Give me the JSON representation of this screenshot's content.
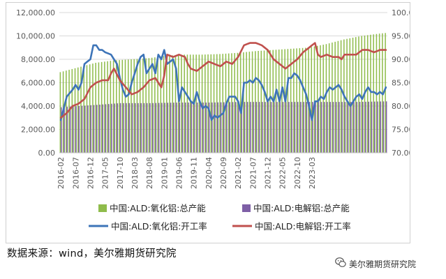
{
  "source_note": "数据来源：wind，美尔雅期货研究院",
  "watermark": "美尔雅期货研究院",
  "chart_data": {
    "type": "bar+line",
    "title": "",
    "left_axis": {
      "ylim": [
        0,
        12000
      ],
      "ticks": [
        "0.00",
        "2,000.00",
        "4,000.00",
        "6,000.00",
        "8,000.00",
        "10,000.00",
        "12,000.00"
      ]
    },
    "right_axis": {
      "ylim": [
        70,
        100
      ],
      "ticks": [
        "70.00",
        "75.00",
        "80.00",
        "85.00",
        "90.00",
        "95.00",
        "100.00"
      ]
    },
    "x_ticks": [
      "2016-02",
      "2016-07",
      "2016-12",
      "2017-05",
      "2017-10",
      "2018-03",
      "2018-08",
      "2019-01",
      "2019-06",
      "2019-11",
      "2020-04",
      "2020-09",
      "2021-02",
      "2021-07",
      "2021-12",
      "2022-05",
      "2022-10",
      "2023-03"
    ],
    "start_month": "2016-02",
    "grid": true,
    "legend_position": "bottom",
    "series": [
      {
        "name": "中国:ALD:氧化铝:总产能",
        "axis": "left",
        "kind": "bar",
        "color": "#8fbc4b",
        "anchors": [
          [
            0,
            6900
          ],
          [
            6,
            7300
          ],
          [
            12,
            7700
          ],
          [
            18,
            7900
          ],
          [
            24,
            8000
          ],
          [
            30,
            8100
          ],
          [
            36,
            8300
          ],
          [
            42,
            8400
          ],
          [
            48,
            8400
          ],
          [
            54,
            8450
          ],
          [
            60,
            8550
          ],
          [
            66,
            8700
          ],
          [
            72,
            8800
          ],
          [
            78,
            8900
          ],
          [
            84,
            9000
          ],
          [
            90,
            9300
          ],
          [
            96,
            9700
          ],
          [
            102,
            10000
          ],
          [
            108,
            10200
          ],
          [
            110,
            10250
          ]
        ]
      },
      {
        "name": "中国:ALD:电解铝:总产能",
        "axis": "left",
        "kind": "bar",
        "color": "#7e5fa6",
        "anchors": [
          [
            0,
            3900
          ],
          [
            12,
            4100
          ],
          [
            20,
            4250
          ],
          [
            30,
            4250
          ],
          [
            40,
            4300
          ],
          [
            50,
            4300
          ],
          [
            60,
            4350
          ],
          [
            70,
            4350
          ],
          [
            80,
            4350
          ],
          [
            90,
            4350
          ],
          [
            100,
            4350
          ],
          [
            110,
            4400
          ]
        ]
      },
      {
        "name": "中国:ALD:氧化铝:开工率",
        "axis": "right",
        "kind": "line",
        "color": "#3d74b8",
        "anchors": [
          [
            0,
            77
          ],
          [
            2,
            82
          ],
          [
            4,
            83.5
          ],
          [
            5,
            84.5
          ],
          [
            6,
            83.5
          ],
          [
            7,
            85
          ],
          [
            8,
            89
          ],
          [
            10,
            90
          ],
          [
            11,
            93
          ],
          [
            12,
            93
          ],
          [
            13,
            92
          ],
          [
            14,
            92
          ],
          [
            15,
            91.5
          ],
          [
            17,
            91
          ],
          [
            18,
            90
          ],
          [
            19,
            89
          ],
          [
            20,
            86
          ],
          [
            21,
            83.5
          ],
          [
            22,
            82
          ],
          [
            23,
            82.5
          ],
          [
            24,
            85
          ],
          [
            25,
            87
          ],
          [
            26,
            89
          ],
          [
            27,
            90.5
          ],
          [
            28,
            91
          ],
          [
            29,
            87
          ],
          [
            30,
            88
          ],
          [
            31,
            89
          ],
          [
            32,
            87
          ],
          [
            33,
            91
          ],
          [
            34,
            90
          ],
          [
            35,
            92
          ],
          [
            36,
            89
          ],
          [
            37,
            89.5
          ],
          [
            38,
            90
          ],
          [
            39,
            88
          ],
          [
            40,
            81
          ],
          [
            41,
            84
          ],
          [
            42,
            83
          ],
          [
            43,
            82
          ],
          [
            44,
            81
          ],
          [
            45,
            80.5
          ],
          [
            46,
            83
          ],
          [
            47,
            81
          ],
          [
            48,
            79.5
          ],
          [
            49,
            80
          ],
          [
            50,
            79.5
          ],
          [
            51,
            77
          ],
          [
            52,
            78
          ],
          [
            53,
            77.5
          ],
          [
            55,
            78.5
          ],
          [
            56,
            80.5
          ],
          [
            57,
            82
          ],
          [
            58,
            82
          ],
          [
            59,
            82
          ],
          [
            60,
            81
          ],
          [
            61,
            78.5
          ],
          [
            62,
            85
          ],
          [
            63,
            85
          ],
          [
            64,
            85.5
          ],
          [
            65,
            85
          ],
          [
            66,
            86
          ],
          [
            67,
            85.5
          ],
          [
            68,
            84.5
          ],
          [
            69,
            83
          ],
          [
            70,
            81
          ],
          [
            71,
            82
          ],
          [
            72,
            81
          ],
          [
            73,
            83.5
          ],
          [
            74,
            81
          ],
          [
            75,
            84
          ],
          [
            76,
            81
          ],
          [
            77,
            86
          ],
          [
            78,
            86
          ],
          [
            79,
            87
          ],
          [
            80,
            86.5
          ],
          [
            81,
            85.5
          ],
          [
            82,
            84
          ],
          [
            83,
            82.5
          ],
          [
            84,
            80
          ],
          [
            85,
            77
          ],
          [
            86,
            81
          ],
          [
            87,
            81
          ],
          [
            88,
            82
          ],
          [
            89,
            81.5
          ],
          [
            90,
            83
          ],
          [
            91,
            84
          ],
          [
            92,
            83.5
          ],
          [
            93,
            84
          ],
          [
            94,
            84.5
          ],
          [
            95,
            83.5
          ],
          [
            96,
            82
          ],
          [
            97,
            81
          ],
          [
            98,
            80
          ],
          [
            99,
            81
          ],
          [
            100,
            82
          ],
          [
            101,
            82.5
          ],
          [
            102,
            81.5
          ],
          [
            103,
            83
          ],
          [
            104,
            84
          ],
          [
            105,
            83
          ],
          [
            106,
            83
          ],
          [
            107,
            82.5
          ],
          [
            108,
            83
          ],
          [
            109,
            82.5
          ],
          [
            110,
            84
          ]
        ]
      },
      {
        "name": "中国:ALD:电解铝:开工率",
        "axis": "right",
        "kind": "line",
        "color": "#c0504d",
        "anchors": [
          [
            0,
            77.5
          ],
          [
            2,
            78.5
          ],
          [
            4,
            80
          ],
          [
            6,
            80.5
          ],
          [
            8,
            81.5
          ],
          [
            10,
            84
          ],
          [
            12,
            85
          ],
          [
            14,
            85.5
          ],
          [
            16,
            85.5
          ],
          [
            17,
            87
          ],
          [
            18,
            88
          ],
          [
            20,
            85.5
          ],
          [
            22,
            84
          ],
          [
            24,
            82.5
          ],
          [
            26,
            83
          ],
          [
            28,
            84
          ],
          [
            30,
            85.5
          ],
          [
            32,
            86
          ],
          [
            34,
            84
          ],
          [
            35,
            86.5
          ],
          [
            36,
            91
          ],
          [
            38,
            90.5
          ],
          [
            40,
            91
          ],
          [
            42,
            90.5
          ],
          [
            43,
            89
          ],
          [
            44,
            88
          ],
          [
            46,
            87.5
          ],
          [
            48,
            88.5
          ],
          [
            50,
            89.5
          ],
          [
            52,
            89
          ],
          [
            54,
            88.5
          ],
          [
            56,
            89.5
          ],
          [
            58,
            89
          ],
          [
            60,
            90.5
          ],
          [
            62,
            93
          ],
          [
            64,
            93.5
          ],
          [
            66,
            93.5
          ],
          [
            68,
            93
          ],
          [
            70,
            92
          ],
          [
            72,
            90
          ],
          [
            74,
            89
          ],
          [
            76,
            88
          ],
          [
            78,
            89
          ],
          [
            80,
            90
          ],
          [
            82,
            91.5
          ],
          [
            84,
            92.5
          ],
          [
            86,
            93.5
          ],
          [
            87,
            91
          ],
          [
            88,
            90.5
          ],
          [
            90,
            91
          ],
          [
            92,
            90.5
          ],
          [
            94,
            90.5
          ],
          [
            95,
            90
          ],
          [
            96,
            91
          ],
          [
            98,
            91
          ],
          [
            100,
            91
          ],
          [
            101,
            91.5
          ],
          [
            102,
            92
          ],
          [
            104,
            92
          ],
          [
            106,
            91.5
          ],
          [
            108,
            92
          ],
          [
            110,
            92
          ]
        ]
      }
    ]
  }
}
